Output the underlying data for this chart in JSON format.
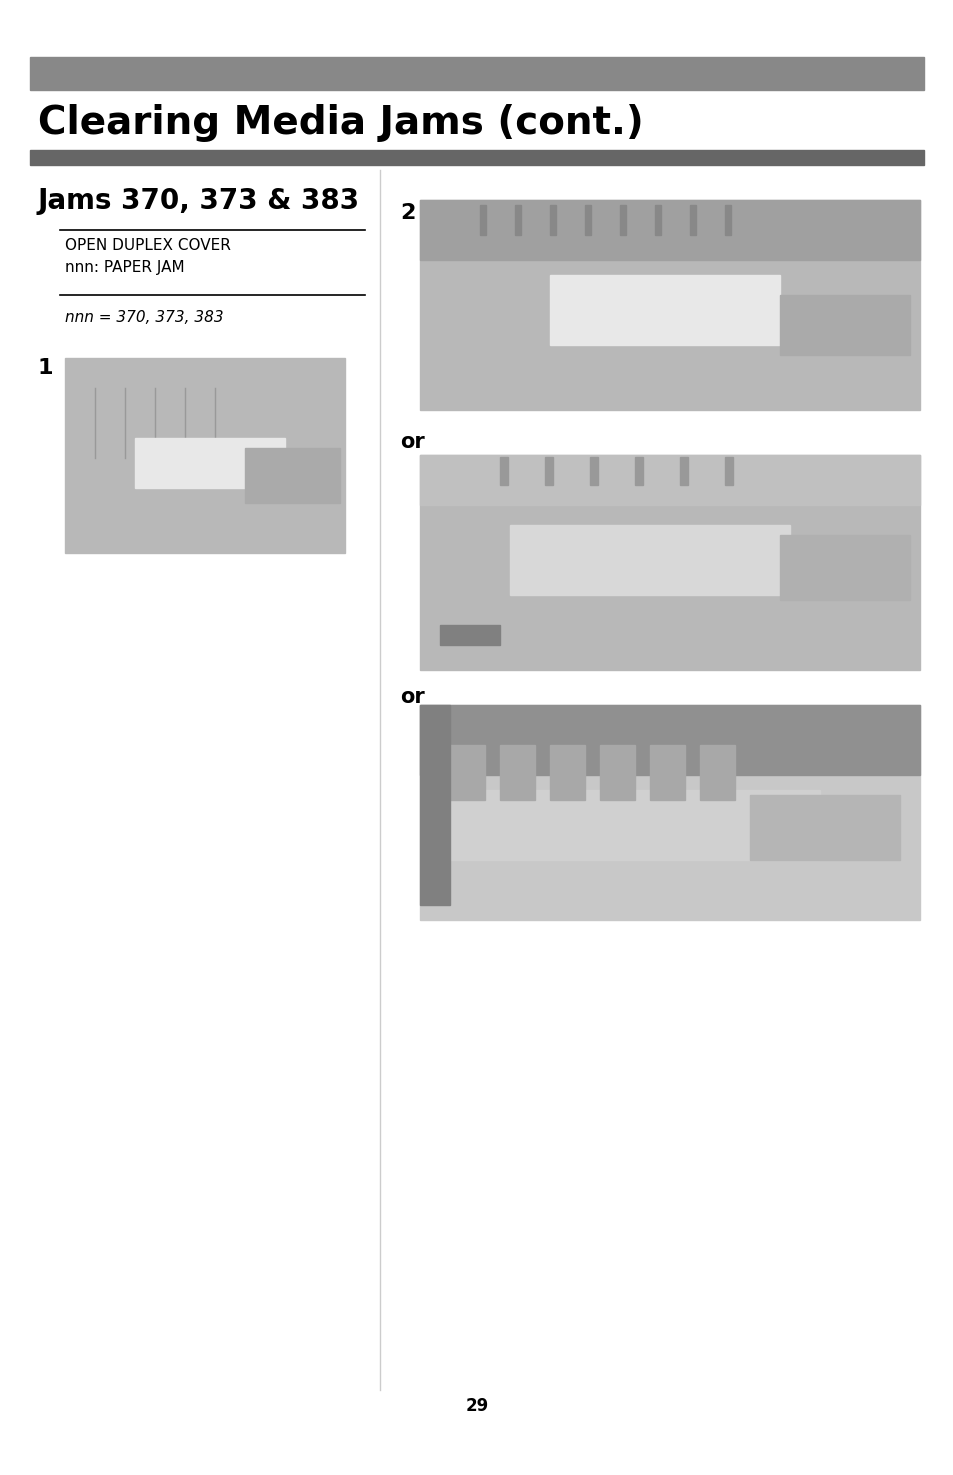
{
  "page_bg": "#ffffff",
  "top_bar_color": "#888888",
  "second_bar_color": "#777777",
  "main_title": "Clearing Media Jams (cont.)",
  "main_title_fontsize": 28,
  "section_title": "Jams 370, 373 & 383",
  "section_title_fontsize": 20,
  "display_line1": "OPEN DUPLEX COVER",
  "display_line2": "nnn: PAPER JAM",
  "display_fontsize": 11,
  "note_text": "nnn = 370, 373, 383",
  "note_fontsize": 11,
  "step1_label": "1",
  "step2_label": "2",
  "or_label": "or",
  "or_fontsize": 15,
  "page_number": "29",
  "page_bg_color": "#ffffff",
  "gray_bar1_color": "#888888",
  "gray_bar2_color": "#666666",
  "img_gray": "#b8b8b8",
  "img_border": "#999999"
}
